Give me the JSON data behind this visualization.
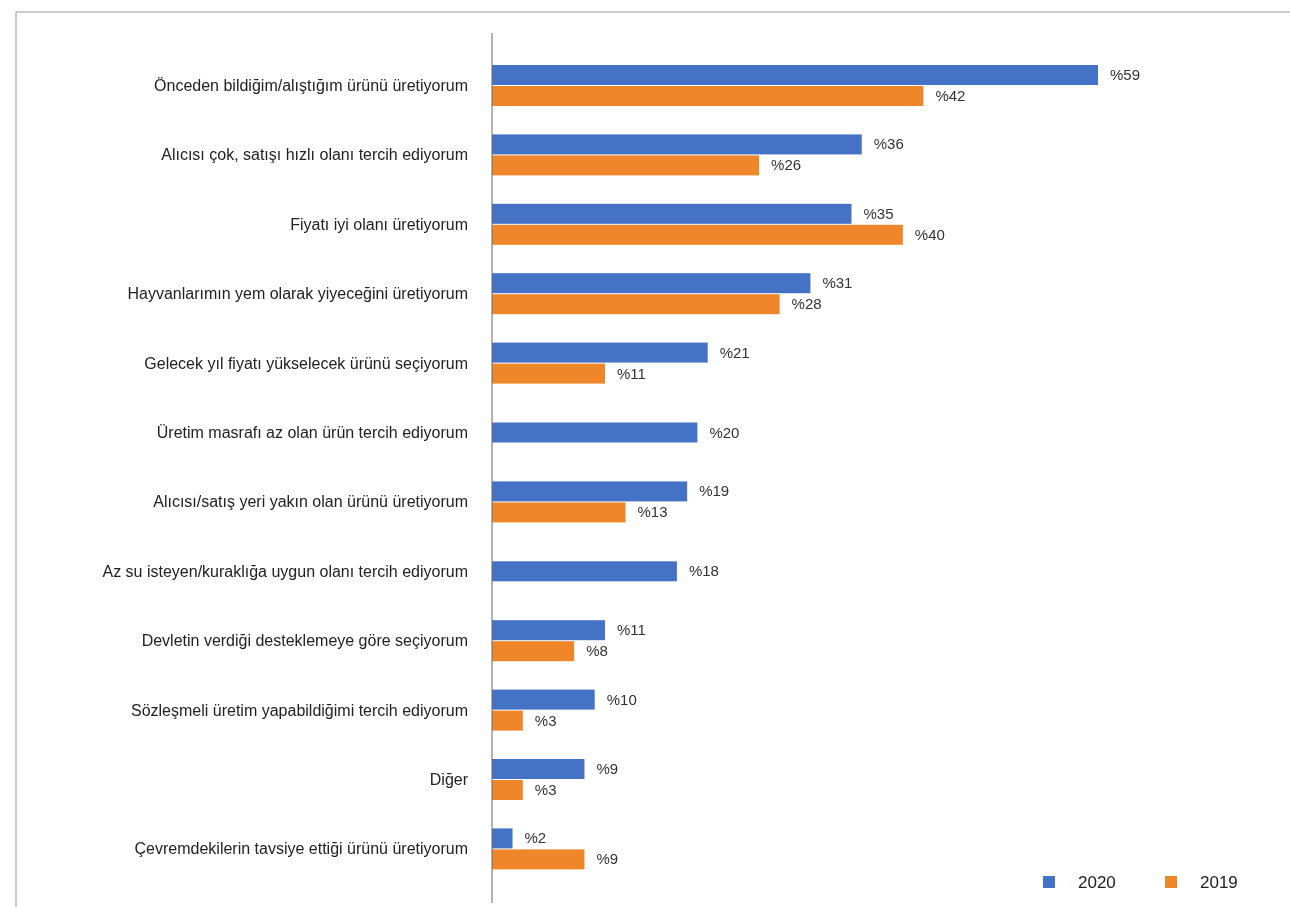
{
  "chart_data": {
    "type": "bar",
    "orientation": "horizontal",
    "legend": "bottom right",
    "categories": [
      "Önceden bildiğim/alıştığım ürünü üretiyorum",
      "Alıcısı çok, satışı hızlı olanı tercih ediyorum",
      "Fiyatı iyi olanı üretiyorum",
      "Hayvanlarımın yem olarak yiyeceğini üretiyorum",
      "Gelecek yıl fiyatı yükselecek ürünü seçiyorum",
      "Üretim masrafı az olan ürün tercih ediyorum",
      "Alıcısı/satış yeri yakın olan ürünü üretiyorum",
      "Az su isteyen/kuraklığa uygun olanı tercih ediyorum",
      "Devletin verdiği desteklemeye göre seçiyorum",
      "Sözleşmeli üretim yapabildiğimi tercih ediyorum",
      "Diğer",
      "Çevremdekilerin tavsiye ettiği ürünü üretiyorum"
    ],
    "series": [
      {
        "name": "2020",
        "color": "#4472c4",
        "values": [
          59,
          36,
          35,
          31,
          21,
          20,
          19,
          18,
          11,
          10,
          9,
          2
        ],
        "value_labels": [
          "%59",
          "%36",
          "%35",
          "%31",
          "%21",
          "%20",
          "%19",
          "%18",
          "%11",
          "%10",
          "%9",
          "%2"
        ]
      },
      {
        "name": "2019",
        "color": "#f0862a",
        "values": [
          42,
          26,
          40,
          28,
          11,
          null,
          13,
          null,
          8,
          3,
          3,
          9
        ],
        "value_labels": [
          "%42",
          "%26",
          "%40",
          "%28",
          "%11",
          null,
          "%13",
          null,
          "%8",
          "%3",
          "%3",
          "%9"
        ]
      }
    ]
  }
}
